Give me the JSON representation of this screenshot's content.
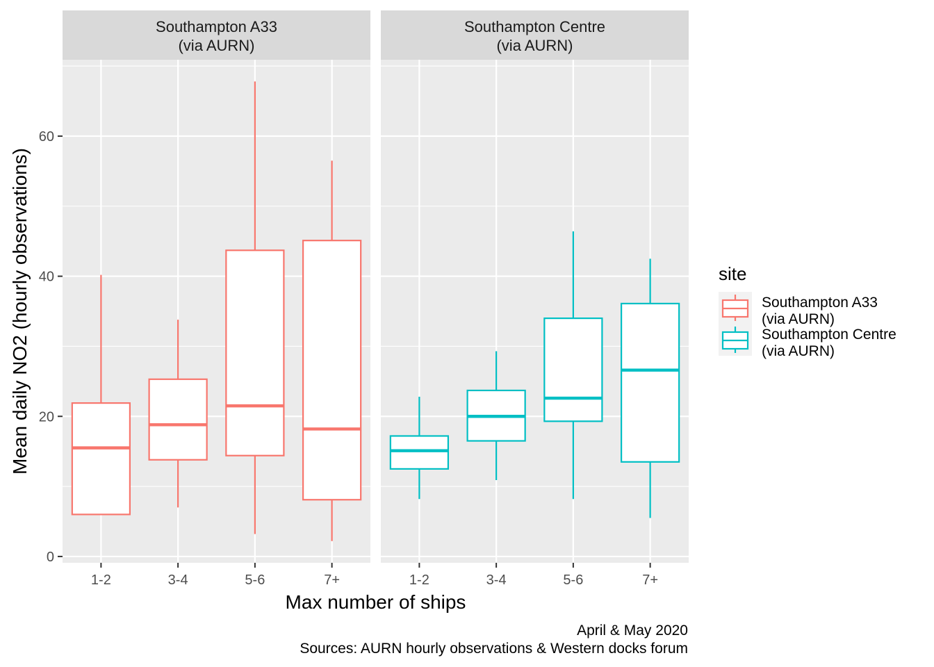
{
  "chart_data": {
    "type": "boxplot",
    "facets": [
      {
        "title_lines": [
          "Southampton A33",
          "(via AURN)"
        ],
        "color": "#F8766D",
        "categories": [
          "1-2",
          "3-4",
          "5-6",
          "7+"
        ],
        "boxes": [
          {
            "category": "1-2",
            "min": 6.0,
            "q1": 6.0,
            "median": 15.5,
            "q3": 21.9,
            "max": 40.2
          },
          {
            "category": "3-4",
            "min": 7.0,
            "q1": 13.8,
            "median": 18.8,
            "q3": 25.3,
            "max": 33.8
          },
          {
            "category": "5-6",
            "min": 3.2,
            "q1": 14.4,
            "median": 21.5,
            "q3": 43.7,
            "max": 67.8
          },
          {
            "category": "7+",
            "min": 2.2,
            "q1": 8.1,
            "median": 18.2,
            "q3": 45.1,
            "max": 56.5
          }
        ]
      },
      {
        "title_lines": [
          "Southampton Centre",
          "(via AURN)"
        ],
        "color": "#00BFC4",
        "categories": [
          "1-2",
          "3-4",
          "5-6",
          "7+"
        ],
        "boxes": [
          {
            "category": "1-2",
            "min": 8.2,
            "q1": 12.5,
            "median": 15.1,
            "q3": 17.2,
            "max": 22.8
          },
          {
            "category": "3-4",
            "min": 10.9,
            "q1": 16.5,
            "median": 20.0,
            "q3": 23.7,
            "max": 29.3
          },
          {
            "category": "5-6",
            "min": 8.2,
            "q1": 19.3,
            "median": 22.6,
            "q3": 34.0,
            "max": 46.4
          },
          {
            "category": "7+",
            "min": 5.5,
            "q1": 13.5,
            "median": 26.6,
            "q3": 36.1,
            "max": 42.5
          }
        ]
      }
    ],
    "ylim": [
      -0.9,
      70.9
    ],
    "y_ticks": [
      0,
      20,
      40,
      60
    ],
    "y_tick_labels": [
      "0",
      "20",
      "40",
      "60"
    ],
    "y_minor_ticks": [
      10,
      30,
      50,
      70
    ],
    "xlabel": "Max number of ships",
    "ylabel": "Mean daily NO2 (hourly observations)",
    "grid": true,
    "legend": {
      "title": "site",
      "placement": "right",
      "items": [
        {
          "lines": [
            "Southampton A33",
            "(via AURN)"
          ],
          "color": "#F8766D"
        },
        {
          "lines": [
            "Southampton Centre",
            "(via AURN)"
          ],
          "color": "#00BFC4"
        }
      ]
    },
    "caption_lines": [
      "April & May 2020",
      "Sources: AURN hourly observations & Western docks forum"
    ]
  }
}
